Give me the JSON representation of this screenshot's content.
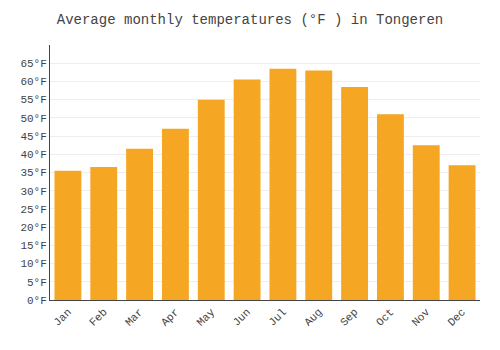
{
  "chart_data": {
    "type": "bar",
    "title": "Average monthly temperatures (°F ) in Tongeren",
    "categories": [
      "Jan",
      "Feb",
      "Mar",
      "Apr",
      "May",
      "Jun",
      "Jul",
      "Aug",
      "Sep",
      "Oct",
      "Nov",
      "Dec"
    ],
    "values": [
      35.5,
      36.5,
      41.5,
      47,
      55,
      60.5,
      63.5,
      63,
      58.5,
      51,
      42.5,
      37
    ],
    "color": "#F5A623",
    "ylim": [
      0,
      70
    ],
    "yticks": [
      {
        "value": 0,
        "label": "0°F"
      },
      {
        "value": 5,
        "label": "5°F"
      },
      {
        "value": 10,
        "label": "10°F"
      },
      {
        "value": 15,
        "label": "15°F"
      },
      {
        "value": 20,
        "label": "20°F"
      },
      {
        "value": 25,
        "label": "25°F"
      },
      {
        "value": 30,
        "label": "30°F"
      },
      {
        "value": 35,
        "label": "35°F"
      },
      {
        "value": 40,
        "label": "40°F"
      },
      {
        "value": 45,
        "label": "45°F"
      },
      {
        "value": 50,
        "label": "50°F"
      },
      {
        "value": 55,
        "label": "55°F"
      },
      {
        "value": 60,
        "label": "60°F"
      },
      {
        "value": 65,
        "label": "65°F"
      }
    ],
    "grid": true
  }
}
